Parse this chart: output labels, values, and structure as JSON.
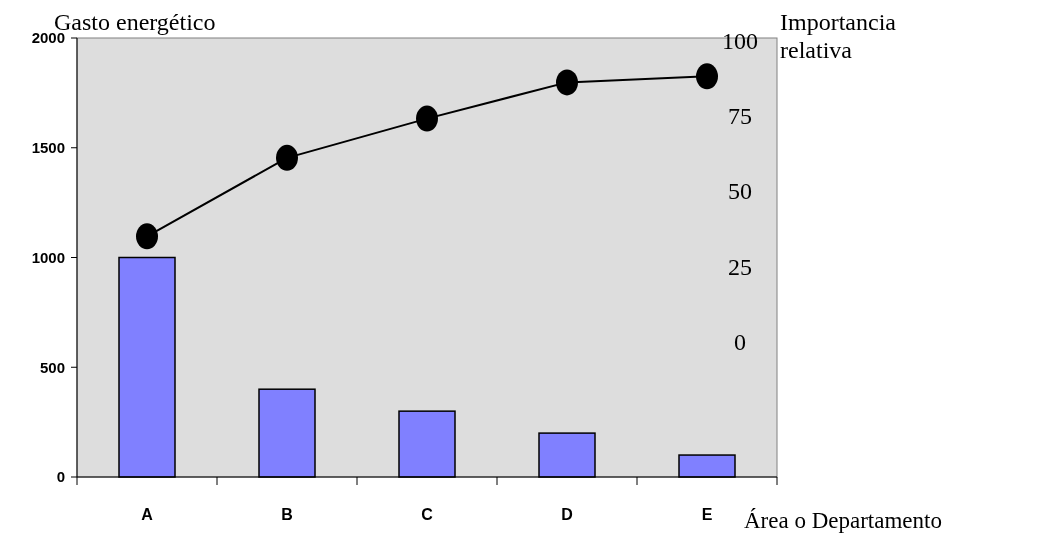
{
  "chart_data": {
    "type": "bar",
    "xlabel": "Área o Departamento",
    "ylabel": "Gasto energético",
    "y2label": "Importancia relativa",
    "categories": [
      "A",
      "B",
      "C",
      "D",
      "E"
    ],
    "series": [
      {
        "color": "#8080ff",
        "values": [
          1000,
          400,
          300,
          200,
          100
        ]
      },
      {
        "type": "line",
        "axis": "y2",
        "color": "#000000",
        "marker": "circle",
        "values": [
          35,
          61,
          74,
          86,
          88
        ]
      }
    ],
    "ylim": [
      0,
      2000
    ],
    "yticks": [
      0,
      500,
      1000,
      1500,
      2000
    ],
    "y2lim": [
      -44.7,
      100.7
    ],
    "y2ticks": [
      0,
      25,
      50,
      75,
      100
    ],
    "grid": false
  }
}
